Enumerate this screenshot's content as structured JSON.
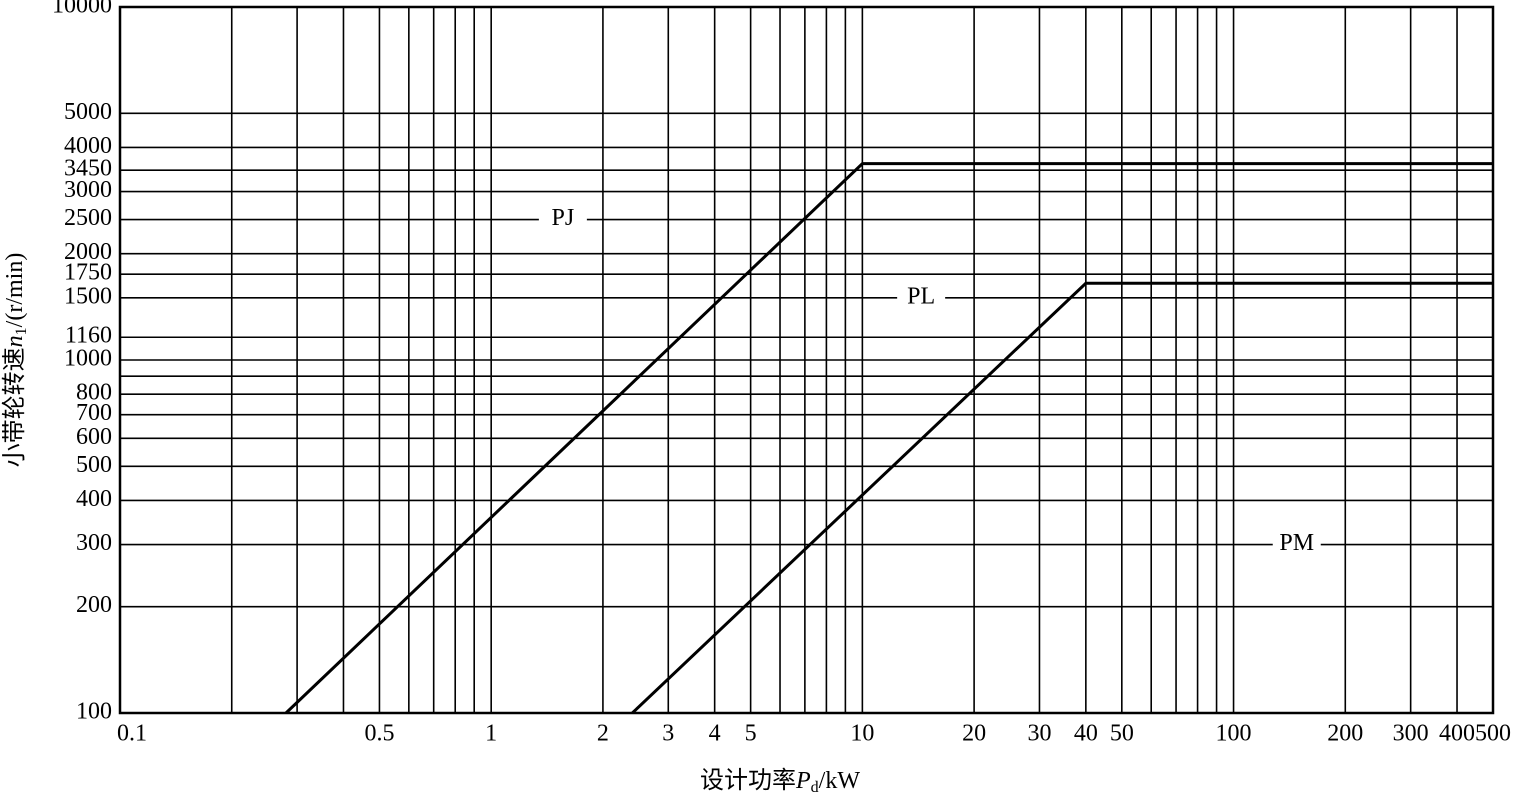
{
  "chart_data": {
    "type": "line",
    "xlabel": [
      "设计功率",
      "P",
      "d",
      "/kW"
    ],
    "ylabel": [
      "小带轮转速",
      "n",
      "1",
      "/(r/min)"
    ],
    "xscale": "log",
    "yscale": "log",
    "xlim": [
      0.1,
      500
    ],
    "ylim": [
      100,
      10000
    ],
    "xticks": [
      0.1,
      0.5,
      1,
      2,
      3,
      4,
      5,
      10,
      20,
      30,
      40,
      50,
      100,
      200,
      300,
      400,
      500
    ],
    "x_minor_grid": [
      0.2,
      0.3,
      0.4,
      0.6,
      0.7,
      0.8,
      0.9,
      6,
      7,
      8,
      9,
      60,
      70,
      80,
      90
    ],
    "yticks": [
      100,
      200,
      300,
      400,
      500,
      600,
      700,
      800,
      1000,
      1160,
      1500,
      1750,
      2000,
      2500,
      3000,
      3450,
      4000,
      5000,
      10000
    ],
    "y_minor_grid": [
      900
    ],
    "grid": true,
    "series": [
      {
        "color": "#000000",
        "x": [
          0.28,
          10,
          500
        ],
        "values": [
          100,
          3600,
          3600
        ]
      },
      {
        "color": "#000000",
        "x": [
          2.4,
          40,
          500
        ],
        "values": [
          100,
          1650,
          1650
        ]
      }
    ],
    "annotations": [
      {
        "text": "PJ",
        "x": 1.56,
        "y": 2500
      },
      {
        "text": "PL",
        "x": 14.4,
        "y": 1500
      },
      {
        "text": "PM",
        "x": 148,
        "y": 300
      }
    ]
  }
}
